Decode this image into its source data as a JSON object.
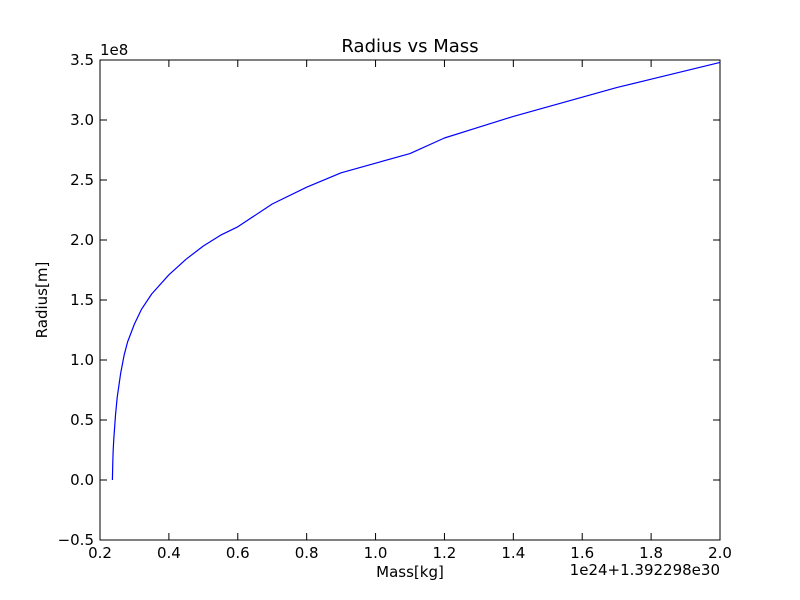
{
  "chart_data": {
    "type": "line",
    "title": "Radius vs Mass",
    "xlabel": "Mass[kg]",
    "ylabel": "Radius[m]",
    "x_offset_text": "1e24+1.392298e30",
    "y_offset_text": "1e8",
    "xlim": [
      0.2,
      2.0
    ],
    "ylim": [
      -0.5,
      3.5
    ],
    "x_ticks": [
      0.2,
      0.4,
      0.6,
      0.8,
      1.0,
      1.2,
      1.4,
      1.6,
      1.8,
      2.0
    ],
    "x_tick_labels": [
      "0.2",
      "0.4",
      "0.6",
      "0.8",
      "1.0",
      "1.2",
      "1.4",
      "1.6",
      "1.8",
      "2.0"
    ],
    "y_ticks": [
      -0.5,
      0.0,
      0.5,
      1.0,
      1.5,
      2.0,
      2.5,
      3.0,
      3.5
    ],
    "y_tick_labels": [
      "−0.5",
      "0.0",
      "0.5",
      "1.0",
      "1.5",
      "2.0",
      "2.5",
      "3.0",
      "3.5"
    ],
    "grid": false,
    "series": [
      {
        "color": "#0000ff",
        "x": [
          0.236,
          0.237,
          0.238,
          0.24,
          0.245,
          0.25,
          0.26,
          0.27,
          0.28,
          0.3,
          0.32,
          0.35,
          0.4,
          0.45,
          0.5,
          0.55,
          0.6,
          0.7,
          0.8,
          0.9,
          1.0,
          1.1,
          1.2,
          1.3,
          1.4,
          1.5,
          1.6,
          1.7,
          1.8,
          1.9,
          2.0
        ],
        "y": [
          0.0,
          0.13,
          0.23,
          0.34,
          0.54,
          0.69,
          0.89,
          1.04,
          1.15,
          1.3,
          1.42,
          1.55,
          1.71,
          1.84,
          1.95,
          2.04,
          2.11,
          2.3,
          2.44,
          2.56,
          2.64,
          2.72,
          2.85,
          2.94,
          3.03,
          3.11,
          3.19,
          3.27,
          3.34,
          3.41,
          3.48
        ]
      }
    ]
  }
}
